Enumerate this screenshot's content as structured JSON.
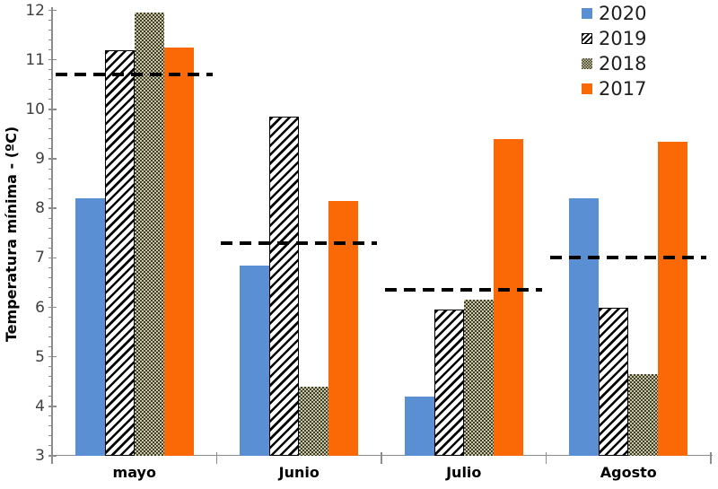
{
  "chart_data": {
    "type": "bar",
    "title": "",
    "ylabel": "Temperatura mínima - (ºC)",
    "xlabel": "",
    "categories": [
      "mayo",
      "Junio",
      "Julio",
      "Agosto"
    ],
    "series": [
      {
        "name": "2020",
        "style": "solid-blue",
        "values": [
          8.2,
          6.85,
          4.2,
          8.2
        ]
      },
      {
        "name": "2019",
        "style": "hatch-diagonal",
        "values": [
          11.2,
          9.85,
          5.95,
          6.0
        ]
      },
      {
        "name": "2018",
        "style": "dotted-olive",
        "values": [
          11.95,
          4.4,
          6.15,
          4.65
        ]
      },
      {
        "name": "2017",
        "style": "solid-orange",
        "values": [
          11.25,
          8.15,
          9.4,
          9.35
        ]
      }
    ],
    "dashed_group_lines": [
      10.7,
      7.3,
      6.35,
      7.0
    ],
    "ylim": [
      3,
      12
    ],
    "ytick_step": 1,
    "yminor_step": 0.2,
    "grid": false,
    "legend_position": "top-right",
    "colors": {
      "blue_2020": "#5A8FD3",
      "orange_2017": "#FB6906",
      "hatch_foreground": "#000000",
      "hatch_background": "#FFFFFF",
      "dots_dark": "#3F3F2E",
      "dots_light": "#C9C4A2",
      "dashed_line": "#000000",
      "axis": "#8C8C8C",
      "tick_label": "#3F3F3F"
    }
  }
}
